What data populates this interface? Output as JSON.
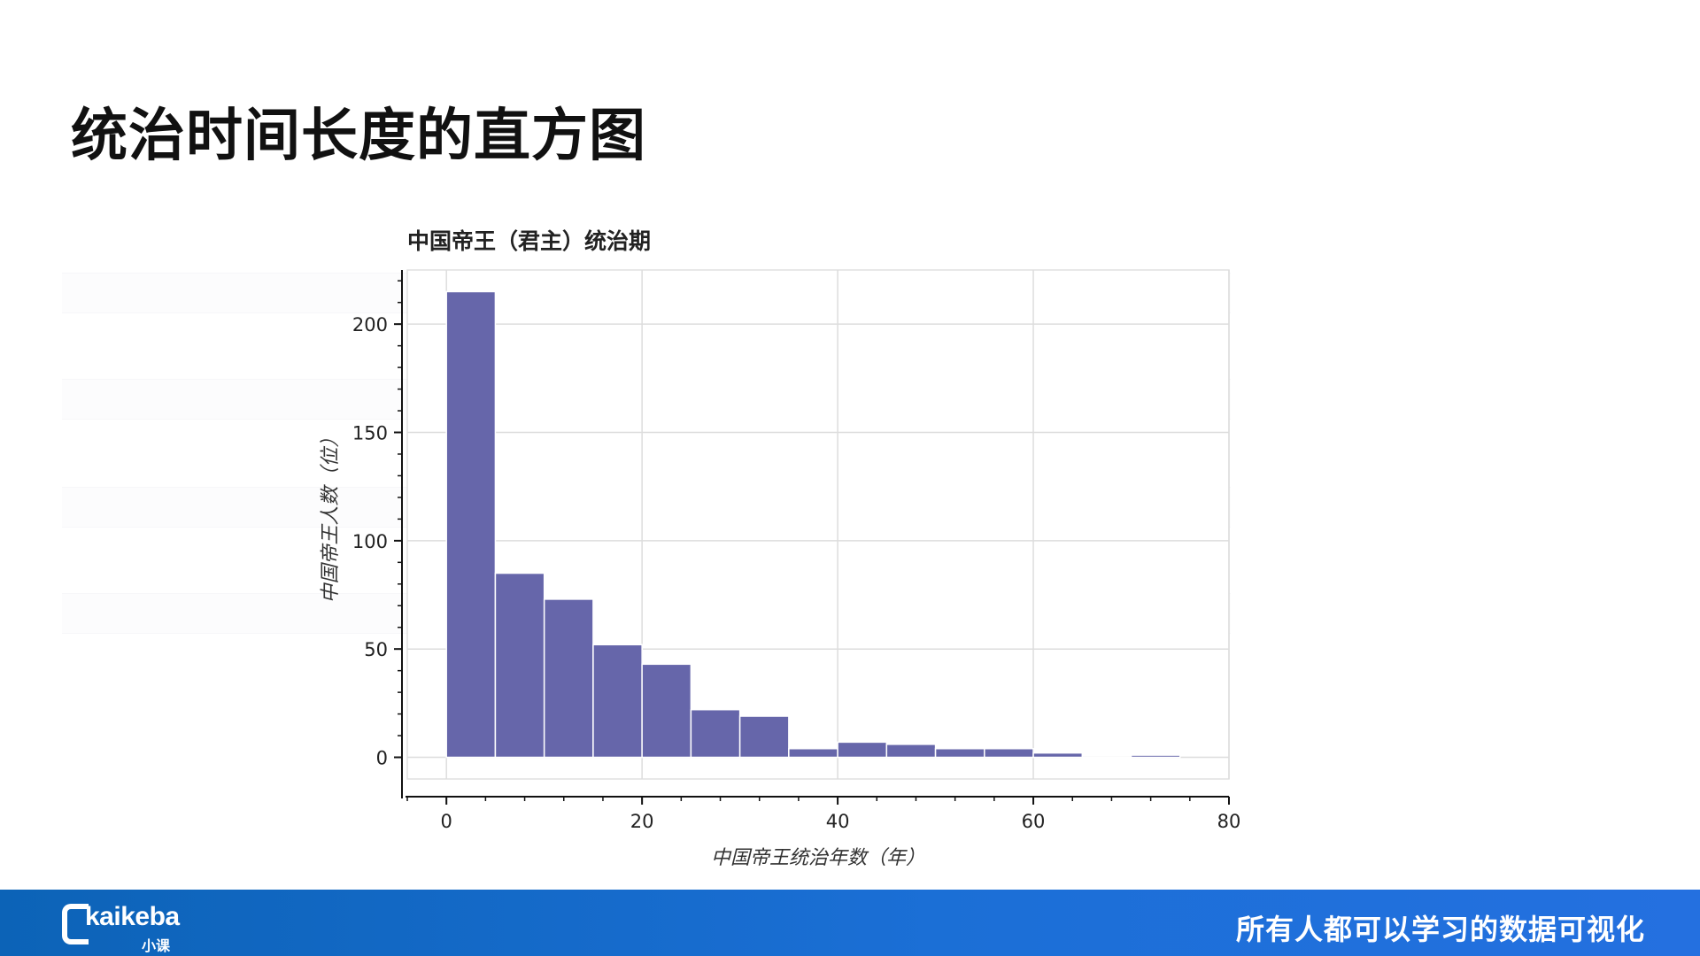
{
  "slide": {
    "title": "统治时间长度的直方图"
  },
  "footer": {
    "logo_text": "kaikeba",
    "logo_sub": "小课",
    "slogan": "所有人都可以学习的数据可视化"
  },
  "chart_data": {
    "type": "bar",
    "title": "中国帝王（君主）统治期",
    "xlabel": "中国帝王统治年数（年）",
    "ylabel": "中国帝王人数（位）",
    "bin_width": 5,
    "bins": [
      0,
      5,
      10,
      15,
      20,
      25,
      30,
      35,
      40,
      45,
      50,
      55,
      60,
      65,
      70
    ],
    "values": [
      215,
      85,
      73,
      52,
      43,
      22,
      19,
      4,
      7,
      6,
      4,
      4,
      2,
      0,
      1
    ],
    "xlim": [
      -4,
      80
    ],
    "ylim": [
      -10,
      225
    ],
    "xticks": [
      0,
      20,
      40,
      60,
      80
    ],
    "yticks": [
      0,
      50,
      100,
      150,
      200
    ],
    "bar_color": "#6666aa",
    "bar_edge_color": "#ffffff",
    "grid": true
  }
}
